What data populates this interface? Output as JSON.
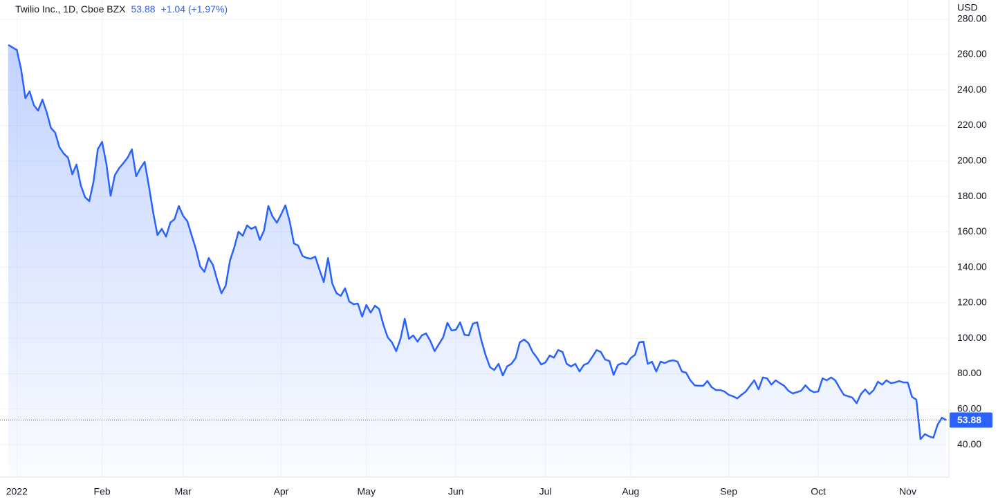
{
  "chart_data": {
    "type": "line",
    "symbol": "Twilio Inc., 1D, Cboe BZX",
    "last_price": 53.88,
    "change": "+1.04 (+1.97%)",
    "currency": "USD",
    "color": "#2962ff",
    "grid": true,
    "categories": [
      null,
      null,
      "2022",
      null,
      null,
      null,
      null,
      null,
      null,
      null,
      null,
      null,
      null,
      null,
      null,
      null,
      null,
      null,
      null,
      null,
      null,
      null,
      "Feb",
      null,
      null,
      null,
      null,
      null,
      null,
      null,
      null,
      null,
      null,
      null,
      null,
      null,
      null,
      null,
      null,
      null,
      null,
      "Mar",
      null,
      null,
      null,
      null,
      null,
      null,
      null,
      null,
      null,
      null,
      null,
      null,
      null,
      null,
      null,
      null,
      null,
      null,
      null,
      null,
      null,
      null,
      "Apr",
      null,
      null,
      null,
      null,
      null,
      null,
      null,
      null,
      null,
      null,
      null,
      null,
      null,
      null,
      null,
      null,
      null,
      null,
      null,
      "May",
      null,
      null,
      null,
      null,
      null,
      null,
      null,
      null,
      null,
      null,
      null,
      null,
      null,
      null,
      null,
      null,
      null,
      null,
      null,
      null,
      "Jun",
      null,
      null,
      null,
      null,
      null,
      null,
      null,
      null,
      null,
      null,
      null,
      null,
      null,
      null,
      null,
      null,
      null,
      null,
      null,
      null,
      "Jul",
      null,
      null,
      null,
      null,
      null,
      null,
      null,
      null,
      null,
      null,
      null,
      null,
      null,
      null,
      null,
      null,
      null,
      null,
      null,
      "Aug",
      null,
      null,
      null,
      null,
      null,
      null,
      null,
      null,
      null,
      null,
      null,
      null,
      null,
      null,
      null,
      null,
      null,
      null,
      null,
      null,
      null,
      null,
      "Sep",
      null,
      null,
      null,
      null,
      null,
      null,
      null,
      null,
      null,
      null,
      null,
      null,
      null,
      null,
      null,
      null,
      null,
      null,
      null,
      null,
      "Oct",
      null,
      null,
      null,
      null,
      null,
      null,
      null,
      null,
      null,
      null,
      null,
      null,
      null,
      null,
      null,
      null,
      null,
      null,
      null,
      null,
      "Nov",
      null,
      null,
      null,
      null,
      null,
      null,
      null,
      null,
      null
    ],
    "values": [
      265.5,
      264,
      262.7,
      251.8,
      235.4,
      239.3,
      231.5,
      228.4,
      234.6,
      227.6,
      218.7,
      216,
      207.7,
      204.2,
      201.9,
      192.5,
      198,
      186.3,
      179.6,
      177.3,
      188.6,
      206.6,
      210.8,
      198.4,
      180.4,
      192.1,
      196,
      198.8,
      201.9,
      206.6,
      191.4,
      196,
      199.5,
      185.5,
      170.7,
      158.2,
      161.7,
      157.4,
      165.2,
      167.2,
      174.6,
      169.1,
      166,
      158.2,
      150.4,
      140.6,
      137.5,
      145.3,
      141.4,
      132.8,
      125.4,
      129.7,
      143.8,
      151.2,
      160.1,
      157.8,
      163.7,
      161.7,
      162.9,
      155.5,
      160.9,
      174.6,
      168.7,
      165.2,
      169.9,
      175,
      166,
      153.5,
      152.3,
      146.5,
      145.3,
      144.9,
      146.1,
      138.7,
      131.7,
      145.3,
      130.9,
      125.4,
      123.9,
      128.2,
      120.7,
      119.2,
      119.6,
      112.2,
      118.8,
      114.5,
      118.4,
      116.5,
      107.5,
      100.5,
      97.7,
      92.7,
      99.7,
      111,
      99.7,
      101.6,
      98.1,
      101.6,
      102.8,
      98.5,
      92.7,
      96.6,
      100.5,
      108.7,
      104.4,
      104.8,
      109,
      102,
      101.6,
      108.3,
      109,
      98.5,
      90.3,
      83.7,
      82.1,
      85.6,
      79,
      84.1,
      85.6,
      88.8,
      97.7,
      99.3,
      97.3,
      92.3,
      89.1,
      85.2,
      86.4,
      90.3,
      89.1,
      93.4,
      92.3,
      85.6,
      84.1,
      85.6,
      81.3,
      84.9,
      86,
      89.5,
      93.4,
      92.3,
      88,
      87.2,
      79.4,
      84.9,
      86,
      85.2,
      88.8,
      90.7,
      97.7,
      98.1,
      85.6,
      86.8,
      81.3,
      86.8,
      86,
      87.2,
      87.6,
      86.8,
      81.3,
      80.6,
      76.3,
      73.5,
      73.2,
      73.2,
      75.9,
      72.4,
      70.8,
      70.8,
      70,
      68.1,
      67.3,
      66.1,
      68.1,
      70,
      73.2,
      76.3,
      71.2,
      77.9,
      77.4,
      73.9,
      76.3,
      74.7,
      73.2,
      70.4,
      68.9,
      69.6,
      70.4,
      73.5,
      70.8,
      69.6,
      70,
      77.4,
      76.3,
      77.9,
      76.3,
      72,
      68.1,
      67.3,
      66.5,
      63.4,
      68.5,
      71.2,
      68.5,
      70.8,
      75.5,
      73.9,
      76.3,
      74.7,
      75.1,
      75.9,
      75.1,
      75.1,
      66.9,
      65.4,
      43.1,
      45.9,
      44.7,
      43.9,
      51.3,
      55.2,
      53.88
    ],
    "ylim": [
      21.7,
      290.8
    ],
    "yticks": [
      {
        "value": 40,
        "label": "40.00"
      },
      {
        "value": 60,
        "label": "60.00"
      },
      {
        "value": 80,
        "label": "80.00"
      },
      {
        "value": 100,
        "label": "100.00"
      },
      {
        "value": 120,
        "label": "120.00"
      },
      {
        "value": 140,
        "label": "140.00"
      },
      {
        "value": 160,
        "label": "160.00"
      },
      {
        "value": 180,
        "label": "180.00"
      },
      {
        "value": 200,
        "label": "200.00"
      },
      {
        "value": 220,
        "label": "220.00"
      },
      {
        "value": 240,
        "label": "240.00"
      },
      {
        "value": 260,
        "label": "260.00"
      },
      {
        "value": 280,
        "label": "280.00"
      }
    ]
  }
}
